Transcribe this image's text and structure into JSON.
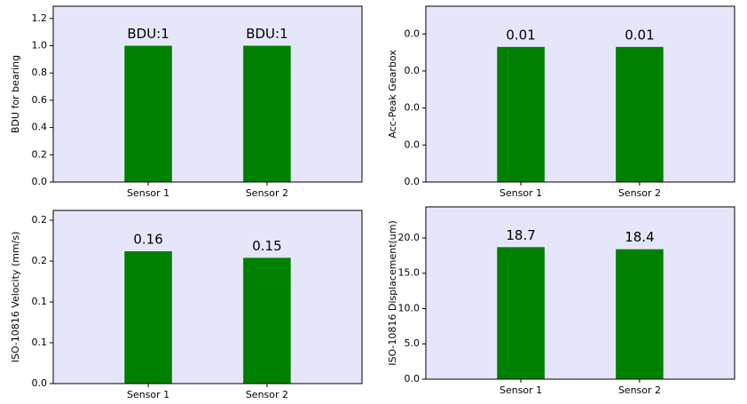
{
  "chart_data": [
    {
      "type": "bar",
      "ylabel": "BDU for bearing",
      "categories": [
        "Sensor 1",
        "Sensor 2"
      ],
      "values": [
        1,
        1
      ],
      "value_labels": [
        "BDU:1",
        "BDU:1"
      ],
      "color": "#008000",
      "ylim": [
        0,
        1.29
      ],
      "yticks": [
        {
          "value": 0,
          "label": "0.0"
        },
        {
          "value": 0.2,
          "label": "0.2"
        },
        {
          "value": 0.4,
          "label": "0.4"
        },
        {
          "value": 0.6,
          "label": "0.6"
        },
        {
          "value": 0.8,
          "label": "0.8"
        },
        {
          "value": 1.0,
          "label": "1.0"
        },
        {
          "value": 1.2,
          "label": "1.2"
        }
      ]
    },
    {
      "type": "bar",
      "ylabel": "Acc-Peak Gearbox",
      "categories": [
        "Sensor 1",
        "Sensor 2"
      ],
      "values": [
        0.0073,
        0.0073
      ],
      "value_labels": [
        "0.01",
        "0.01"
      ],
      "color": "#008000",
      "ylim": [
        0,
        0.0095
      ],
      "yticks": [
        {
          "value": 0,
          "label": "0.0"
        },
        {
          "value": 0.002,
          "label": "0.0"
        },
        {
          "value": 0.004,
          "label": "0.0"
        },
        {
          "value": 0.006,
          "label": "0.0"
        },
        {
          "value": 0.008,
          "label": "0.0"
        }
      ]
    },
    {
      "type": "bar",
      "ylabel": "ISO-10816 Velocity (mm/s)",
      "categories": [
        "Sensor 1",
        "Sensor 2"
      ],
      "values": [
        0.162,
        0.154
      ],
      "value_labels": [
        "0.16",
        "0.15"
      ],
      "color": "#008000",
      "ylim": [
        0,
        0.212
      ],
      "yticks": [
        {
          "value": 0,
          "label": "0.0"
        },
        {
          "value": 0.05,
          "label": "0.1"
        },
        {
          "value": 0.1,
          "label": "0.1"
        },
        {
          "value": 0.15,
          "label": "0.2"
        },
        {
          "value": 0.2,
          "label": "0.2"
        }
      ]
    },
    {
      "type": "bar",
      "ylabel": "ISO-10816 Displacement(um)",
      "categories": [
        "Sensor 1",
        "Sensor 2"
      ],
      "values": [
        18.7,
        18.4
      ],
      "color": "#008000",
      "ylim": [
        0,
        24.4
      ],
      "yticks": [
        {
          "value": 0,
          "label": "0.0"
        },
        {
          "value": 5,
          "label": "5.0"
        },
        {
          "value": 10,
          "label": "10.0"
        },
        {
          "value": 15,
          "label": "15.0"
        },
        {
          "value": 20,
          "label": "20.0"
        }
      ]
    }
  ]
}
